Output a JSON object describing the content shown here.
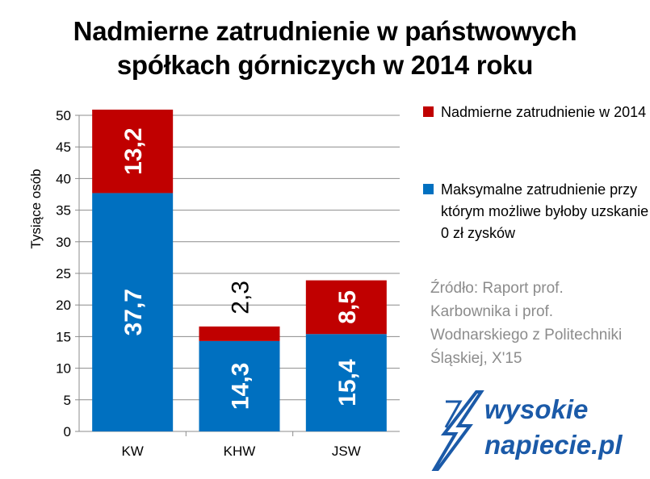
{
  "title": {
    "line1": "Nadmierne zatrudnienie w państwowych",
    "line2": "spółkach górniczych w 2014 roku"
  },
  "legend": {
    "items": [
      {
        "label": "Nadmierne zatrudnienie w 2014",
        "color": "#c00000"
      },
      {
        "label": "Maksymalne zatrudnienie przy którym możliwe byłoby uzskanie 0 zł zysków",
        "color": "#0070c0"
      }
    ]
  },
  "source": "Źródło: Raport  prof. Karbownika i prof. Wodnarskiego z Politechniki Śląskiej, X'15",
  "logo": {
    "line1": "wysokie",
    "line2": "napiecie.pl"
  },
  "chart_data": {
    "type": "bar",
    "stacked": true,
    "categories": [
      "KW",
      "KHW",
      "JSW"
    ],
    "series": [
      {
        "name": "Maksymalne zatrudnienie przy którym możliwe byłoby uzskanie 0 zł zysków",
        "values": [
          37.7,
          14.3,
          15.4
        ],
        "labels": [
          "37,7",
          "14,3",
          "15,4"
        ],
        "color": "#0070c0"
      },
      {
        "name": "Nadmierne zatrudnienie w 2014",
        "values": [
          13.2,
          2.3,
          8.5
        ],
        "labels": [
          "13,2",
          "2,3",
          "8,5"
        ],
        "color": "#c00000"
      }
    ],
    "ylabel": "Tysiące osób",
    "ylim": [
      0,
      50
    ],
    "yticks": [
      0,
      5,
      10,
      15,
      20,
      25,
      30,
      35,
      40,
      45,
      50
    ],
    "grid": true,
    "legend_position": "right"
  }
}
